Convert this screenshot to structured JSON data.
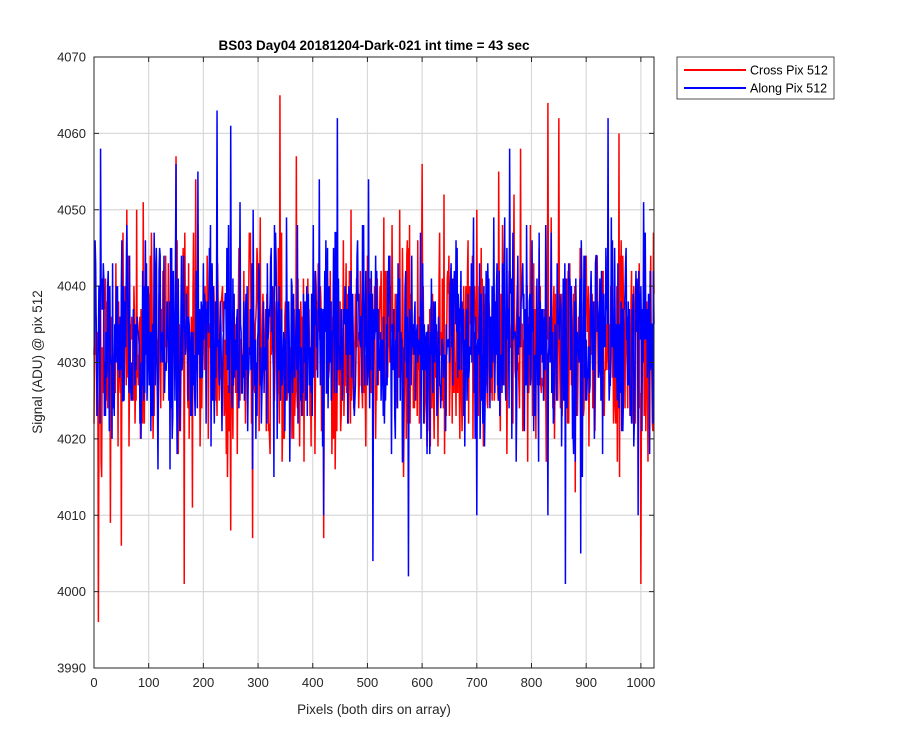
{
  "chart_data": {
    "type": "line",
    "title": "BS03 Day04 20181204-Dark-021 int time = 43 sec",
    "xlabel": "Pixels (both dirs on array)",
    "ylabel": "Signal (ADU) @ pix 512",
    "xlim": [
      0,
      1024
    ],
    "ylim": [
      3990,
      4070
    ],
    "xticks": [
      0,
      100,
      200,
      300,
      400,
      500,
      600,
      700,
      800,
      900,
      1000
    ],
    "yticks": [
      3990,
      4000,
      4010,
      4020,
      4030,
      4040,
      4050,
      4060,
      4070
    ],
    "grid": true,
    "legend_position": "outside-top-right",
    "series": [
      {
        "name": "Cross Pix 512",
        "color": "#ff0000",
        "mean": 4033,
        "min": 3996,
        "max": 4065,
        "x": [
          0,
          8,
          14,
          30,
          50,
          90,
          150,
          165,
          180,
          250,
          290,
          340,
          370,
          420,
          470,
          500,
          530,
          560,
          600,
          640,
          700,
          740,
          780,
          800,
          830,
          850,
          880,
          920,
          960,
          1000,
          1023
        ],
        "values": [
          4022,
          3996,
          4015,
          4009,
          4006,
          4051,
          4057,
          4001,
          4011,
          4008,
          4007,
          4065,
          4057,
          4007,
          4050,
          4044,
          4049,
          4030,
          4056,
          4052,
          4050,
          4055,
          4058,
          4041,
          4064,
          4062,
          4013,
          4044,
          4060,
          4001,
          4047
        ]
      },
      {
        "name": "Along Pix 512",
        "color": "#0000ff",
        "mean": 4033,
        "min": 4001,
        "max": 4063,
        "x": [
          0,
          12,
          60,
          110,
          150,
          190,
          225,
          250,
          290,
          330,
          420,
          445,
          510,
          575,
          650,
          700,
          760,
          800,
          830,
          862,
          890,
          940,
          995,
          1023
        ],
        "values": [
          4031,
          4058,
          4048,
          4047,
          4056,
          4055,
          4063,
          4061,
          4016,
          4048,
          4010,
          4062,
          4004,
          4002,
          4030,
          4010,
          4058,
          4040,
          4010,
          4001,
          4005,
          4062,
          4010,
          4042
        ]
      }
    ]
  }
}
